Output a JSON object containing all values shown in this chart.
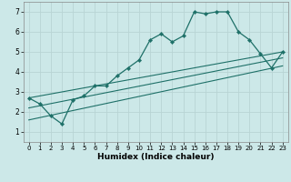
{
  "xlabel": "Humidex (Indice chaleur)",
  "xlim": [
    -0.5,
    23.5
  ],
  "ylim": [
    0.5,
    7.5
  ],
  "yticks": [
    1,
    2,
    3,
    4,
    5,
    6,
    7
  ],
  "xticks": [
    0,
    1,
    2,
    3,
    4,
    5,
    6,
    7,
    8,
    9,
    10,
    11,
    12,
    13,
    14,
    15,
    16,
    17,
    18,
    19,
    20,
    21,
    22,
    23
  ],
  "bg_color": "#cce8e8",
  "grid_color": "#b8d4d4",
  "line_color": "#1e7068",
  "main_line_x": [
    0,
    1,
    2,
    3,
    4,
    5,
    6,
    7,
    8,
    9,
    10,
    11,
    12,
    13,
    14,
    15,
    16,
    17,
    18,
    19,
    20,
    21,
    22,
    23
  ],
  "main_line_y": [
    2.7,
    2.4,
    1.8,
    1.4,
    2.6,
    2.8,
    3.3,
    3.3,
    3.8,
    4.2,
    4.6,
    5.6,
    5.9,
    5.5,
    5.8,
    7.0,
    6.9,
    7.0,
    7.0,
    6.0,
    5.6,
    4.9,
    4.2,
    5.0
  ],
  "reg_line1_x": [
    0,
    23
  ],
  "reg_line1_y": [
    2.7,
    5.0
  ],
  "reg_line2_x": [
    0,
    23
  ],
  "reg_line2_y": [
    2.2,
    4.7
  ],
  "reg_line3_x": [
    0,
    23
  ],
  "reg_line3_y": [
    1.6,
    4.3
  ]
}
